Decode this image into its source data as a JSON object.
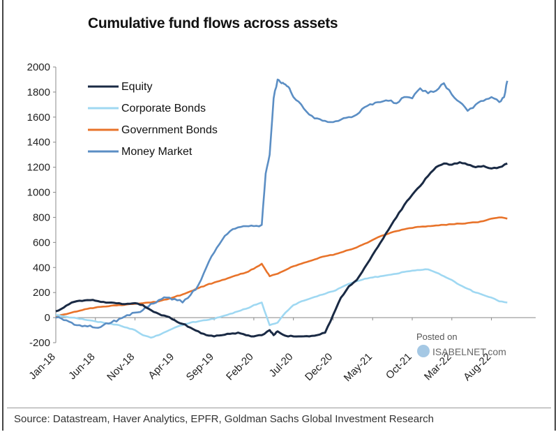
{
  "chart_data": {
    "type": "line",
    "title": "Cumulative fund flows across assets",
    "xlabel": "",
    "ylabel": "",
    "ylim": [
      -200,
      2000
    ],
    "yticks": [
      -200,
      0,
      200,
      400,
      600,
      800,
      1000,
      1200,
      1400,
      1600,
      1800,
      2000
    ],
    "xlim": [
      0,
      59
    ],
    "xtick_labels": [
      "Jan-18",
      "Jun-18",
      "Nov-18",
      "Apr-19",
      "Sep-19",
      "Feb-20",
      "Jul-20",
      "Dec-20",
      "May-21",
      "Oct-21",
      "Mar-22",
      "Aug-22"
    ],
    "xtick_positions": [
      0,
      5,
      10,
      15,
      20,
      25,
      30,
      35,
      40,
      45,
      50,
      55
    ],
    "legend_position": "top-left",
    "series": [
      {
        "name": "Equity",
        "color": "#1a2a44",
        "x": [
          0,
          1,
          2,
          3,
          4,
          5,
          6,
          7,
          8,
          9,
          10,
          11,
          12,
          13,
          14,
          15,
          16,
          17,
          18,
          19,
          20,
          21,
          22,
          23,
          24,
          25,
          26,
          27,
          27.5,
          28,
          29,
          30,
          31,
          32,
          33,
          34,
          35,
          36,
          37,
          38,
          39,
          40,
          41,
          42,
          43,
          44,
          45,
          46,
          47,
          48,
          49,
          50,
          51,
          52,
          53,
          54,
          55,
          56,
          57
        ],
        "values": [
          50,
          80,
          120,
          135,
          140,
          135,
          125,
          120,
          115,
          110,
          115,
          100,
          60,
          30,
          10,
          -20,
          -50,
          -80,
          -110,
          -140,
          -150,
          -140,
          -130,
          -120,
          -140,
          -150,
          -140,
          -100,
          -140,
          -110,
          -145,
          -150,
          -150,
          -150,
          -140,
          -120,
          20,
          160,
          250,
          300,
          400,
          500,
          600,
          700,
          800,
          900,
          980,
          1050,
          1130,
          1200,
          1230,
          1220,
          1240,
          1220,
          1200,
          1210,
          1190,
          1200,
          1230
        ]
      },
      {
        "name": "Corporate Bonds",
        "color": "#9fd8f2",
        "x": [
          0,
          1,
          2,
          3,
          4,
          5,
          6,
          7,
          8,
          9,
          10,
          11,
          12,
          13,
          14,
          15,
          16,
          17,
          18,
          19,
          20,
          21,
          22,
          23,
          24,
          25,
          26,
          27,
          28,
          29,
          30,
          31,
          32,
          33,
          34,
          35,
          36,
          37,
          38,
          39,
          40,
          41,
          42,
          43,
          44,
          45,
          46,
          47,
          48,
          49,
          50,
          51,
          52,
          53,
          54,
          55,
          56,
          57
        ],
        "values": [
          20,
          10,
          0,
          -10,
          -20,
          -30,
          -40,
          -50,
          -60,
          -80,
          -100,
          -140,
          -160,
          -140,
          -110,
          -80,
          -60,
          -40,
          -30,
          -20,
          -10,
          10,
          30,
          50,
          70,
          100,
          120,
          -60,
          -40,
          40,
          100,
          130,
          150,
          170,
          190,
          210,
          240,
          270,
          290,
          310,
          320,
          330,
          340,
          350,
          365,
          375,
          380,
          385,
          360,
          330,
          300,
          260,
          230,
          200,
          180,
          160,
          130,
          120
        ]
      },
      {
        "name": "Government Bonds",
        "color": "#e8732a",
        "x": [
          0,
          1,
          2,
          3,
          4,
          5,
          6,
          7,
          8,
          9,
          10,
          11,
          12,
          13,
          14,
          15,
          16,
          17,
          18,
          19,
          20,
          21,
          22,
          23,
          24,
          25,
          26,
          26.5,
          27,
          28,
          29,
          30,
          31,
          32,
          33,
          34,
          35,
          36,
          37,
          38,
          39,
          40,
          41,
          42,
          43,
          44,
          45,
          46,
          47,
          48,
          49,
          50,
          51,
          52,
          53,
          54,
          55,
          56,
          57
        ],
        "values": [
          10,
          25,
          40,
          55,
          70,
          80,
          88,
          95,
          100,
          105,
          110,
          115,
          120,
          130,
          145,
          165,
          185,
          210,
          235,
          260,
          280,
          300,
          320,
          340,
          360,
          390,
          430,
          380,
          330,
          350,
          380,
          410,
          430,
          450,
          470,
          490,
          500,
          520,
          540,
          560,
          590,
          620,
          650,
          670,
          690,
          705,
          715,
          725,
          730,
          735,
          740,
          745,
          750,
          755,
          760,
          770,
          790,
          800,
          790
        ]
      },
      {
        "name": "Money Market",
        "color": "#5b8ec4",
        "x": [
          0,
          1,
          2,
          3,
          4,
          5,
          6,
          7,
          8,
          9,
          10,
          11,
          12,
          13,
          14,
          15,
          16,
          17,
          18,
          19,
          20,
          21,
          22,
          23,
          24,
          25,
          26,
          26.5,
          27,
          27.5,
          28,
          28.5,
          29,
          29.5,
          30,
          31,
          32,
          33,
          34,
          35,
          36,
          37,
          38,
          39,
          40,
          41,
          42,
          43,
          44,
          45,
          46,
          47,
          48,
          49,
          50,
          51,
          52,
          53,
          54,
          55,
          56,
          56.6,
          57
        ],
        "values": [
          0,
          -20,
          -40,
          -60,
          -70,
          -80,
          -60,
          -40,
          -10,
          20,
          40,
          60,
          110,
          140,
          160,
          150,
          120,
          180,
          260,
          400,
          520,
          620,
          690,
          720,
          730,
          730,
          740,
          1150,
          1300,
          1750,
          1900,
          1870,
          1860,
          1830,
          1760,
          1700,
          1620,
          1590,
          1570,
          1560,
          1580,
          1600,
          1620,
          1680,
          1700,
          1720,
          1730,
          1710,
          1760,
          1750,
          1830,
          1790,
          1810,
          1870,
          1780,
          1720,
          1650,
          1700,
          1730,
          1760,
          1720,
          1760,
          1890
        ]
      }
    ]
  },
  "watermark": {
    "line1": "Posted on",
    "line2": "ISABELNET.com"
  },
  "source_text": "Source: Datastream, Haver Analytics, EPFR, Goldman Sachs Global Investment Research"
}
